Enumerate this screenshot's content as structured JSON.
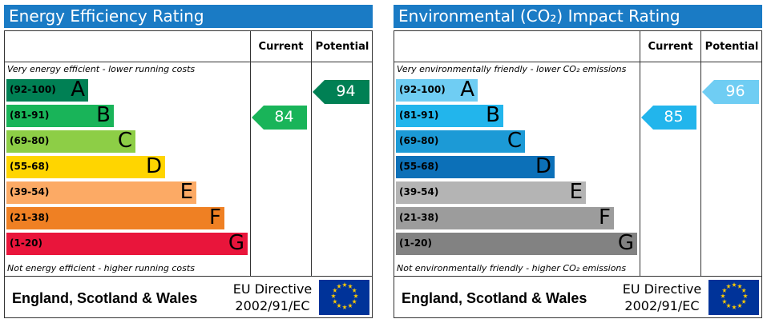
{
  "panels": [
    {
      "title": "Energy Efficiency Rating",
      "col_current": "Current",
      "col_potential": "Potential",
      "top_note": "Very energy efficient - lower running costs",
      "bottom_note": "Not energy efficient - higher running costs",
      "bands": [
        {
          "range": "(92-100)",
          "letter": "A",
          "color": "#008054"
        },
        {
          "range": "(81-91)",
          "letter": "B",
          "color": "#19b459"
        },
        {
          "range": "(69-80)",
          "letter": "C",
          "color": "#8dce46"
        },
        {
          "range": "(55-68)",
          "letter": "D",
          "color": "#ffd500"
        },
        {
          "range": "(39-54)",
          "letter": "E",
          "color": "#fcaa65"
        },
        {
          "range": "(21-38)",
          "letter": "F",
          "color": "#ef8023"
        },
        {
          "range": "(1-20)",
          "letter": "G",
          "color": "#e9153b"
        }
      ],
      "current": 84,
      "potential": 94,
      "footer": "England, Scotland & Wales",
      "directive_1": "EU Directive",
      "directive_2": "2002/91/EC"
    },
    {
      "title": "Environmental (CO₂) Impact Rating",
      "col_current": "Current",
      "col_potential": "Potential",
      "top_note": "Very environmentally friendly - lower CO₂ emissions",
      "bottom_note": "Not environmentally friendly - higher CO₂ emissions",
      "bands": [
        {
          "range": "(92-100)",
          "letter": "A",
          "color": "#6fcdf3"
        },
        {
          "range": "(81-91)",
          "letter": "B",
          "color": "#22b5ec"
        },
        {
          "range": "(69-80)",
          "letter": "C",
          "color": "#1c9ad6"
        },
        {
          "range": "(55-68)",
          "letter": "D",
          "color": "#0c70b8"
        },
        {
          "range": "(39-54)",
          "letter": "E",
          "color": "#b4b4b4"
        },
        {
          "range": "(21-38)",
          "letter": "F",
          "color": "#9c9c9c"
        },
        {
          "range": "(1-20)",
          "letter": "G",
          "color": "#828282"
        }
      ],
      "current": 85,
      "potential": 96,
      "footer": "England, Scotland & Wales",
      "directive_1": "EU Directive",
      "directive_2": "2002/91/EC"
    }
  ]
}
